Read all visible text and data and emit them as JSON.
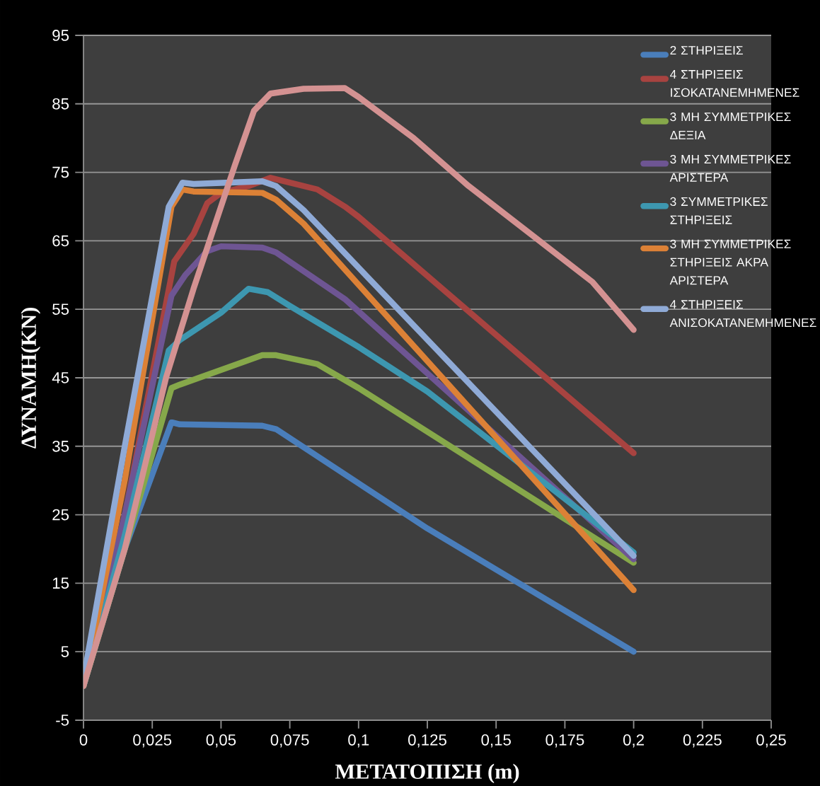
{
  "chart_data": {
    "type": "line",
    "xlabel": "ΜΕΤΑΤΟΠΙΣΗ (m)",
    "ylabel": "ΔΥΝΑΜΗ(KN)",
    "xlim": [
      0,
      0.25
    ],
    "ylim": [
      -5,
      95
    ],
    "xticks": [
      0,
      {
        "value": 0.025,
        "label": "0,025"
      },
      {
        "value": 0.05,
        "label": "0,05"
      },
      {
        "value": 0.075,
        "label": "0,075"
      },
      {
        "value": 0.1,
        "label": "0,1"
      },
      {
        "value": 0.125,
        "label": "0,125"
      },
      {
        "value": 0.15,
        "label": "0,15"
      },
      {
        "value": 0.175,
        "label": "0,175"
      },
      {
        "value": 0.2,
        "label": "0,2"
      },
      {
        "value": 0.225,
        "label": "0,225"
      },
      {
        "value": 0.25,
        "label": "0,25"
      }
    ],
    "yticks": [
      -5,
      5,
      15,
      25,
      35,
      45,
      55,
      65,
      75,
      85,
      95
    ],
    "grid": "y",
    "legend": "top right",
    "marker": "none",
    "line_style": "solid",
    "series": [
      {
        "name": "2  ΣΤΗΡΙΞΕΙΣ",
        "color": "#4a7ebb",
        "x": [
          0,
          0.015,
          0.032,
          0.035,
          0.065,
          0.07,
          0.125,
          0.2
        ],
        "values": [
          0,
          20,
          38.5,
          38.2,
          38,
          37.5,
          23,
          5
        ]
      },
      {
        "name": "4 ΣΤΗΡΙΞΕΙΣ ΙΣΟΚΑΤΑΝΕΜΗΜΕΝΕΣ",
        "color": "#a84340",
        "x": [
          0,
          0.015,
          0.033,
          0.04,
          0.045,
          0.05,
          0.06,
          0.068,
          0.085,
          0.095,
          0.1,
          0.2
        ],
        "values": [
          0,
          25,
          62,
          66,
          70.5,
          72,
          73,
          74.2,
          72.5,
          70,
          68.5,
          34
        ]
      },
      {
        "name": "3 ΜΗ ΣΥΜΜΕΤΡΙΚΕΣ ΔΕΞΙΑ",
        "color": "#86a84a",
        "x": [
          0,
          0.015,
          0.032,
          0.035,
          0.065,
          0.07,
          0.085,
          0.1,
          0.2
        ],
        "values": [
          0,
          20,
          43.5,
          44,
          48.3,
          48.3,
          47,
          43.5,
          18
        ]
      },
      {
        "name": "3 ΜΗ ΣΥΜΜΕΤΡΙΚΕΣ ΑΡΙΣΤΕΡΑ",
        "color": "#6e5593",
        "x": [
          0,
          0.015,
          0.032,
          0.037,
          0.045,
          0.05,
          0.065,
          0.07,
          0.095,
          0.2
        ],
        "values": [
          0,
          25,
          57,
          60,
          63.5,
          64.2,
          64,
          63.3,
          56.5,
          18.5
        ]
      },
      {
        "name": "3 ΣΥΜΜΕΤΡΙΚΕΣ ΣΤΗΡΙΞΕΙΣ",
        "color": "#3d97b0",
        "x": [
          0,
          0.015,
          0.031,
          0.035,
          0.05,
          0.06,
          0.067,
          0.075,
          0.1,
          0.125,
          0.2
        ],
        "values": [
          0,
          22,
          49,
          50.5,
          54.5,
          58,
          57.5,
          55.5,
          49.5,
          43,
          19.5
        ]
      },
      {
        "name": "3 ΜΗ ΣΥΜΜΕΤΡΙΚΕΣ ΣΤΗΡΙΞΕΙΣ ΑΚΡΑ ΑΡΙΣΤΕΡΑ",
        "color": "#dc8136",
        "x": [
          0,
          0.015,
          0.032,
          0.036,
          0.04,
          0.065,
          0.07,
          0.08,
          0.2
        ],
        "values": [
          0,
          30,
          70,
          72.5,
          72.2,
          72,
          71,
          67.5,
          14
        ]
      },
      {
        "name": "4 ΣΤΗΡΙΞΕΙΣ ΑΝΙΣΟΚΑΤΑΝΕΜΗΜΕΝΕΣ",
        "color": "#8faad6",
        "x": [
          0,
          0.015,
          0.031,
          0.036,
          0.04,
          0.065,
          0.07,
          0.08,
          0.2
        ],
        "values": [
          1,
          35,
          70,
          73.5,
          73.3,
          73.7,
          73,
          69.5,
          19
        ]
      },
      {
        "color": "#d49292",
        "x": [
          0,
          0.015,
          0.03,
          0.04,
          0.05,
          0.055,
          0.062,
          0.068,
          0.08,
          0.095,
          0.1,
          0.11,
          0.12,
          0.14,
          0.185,
          0.2
        ],
        "values": [
          0,
          20,
          45,
          58,
          70,
          76,
          84,
          86.5,
          87.2,
          87.3,
          86,
          83,
          80,
          73,
          59,
          52
        ]
      }
    ]
  }
}
